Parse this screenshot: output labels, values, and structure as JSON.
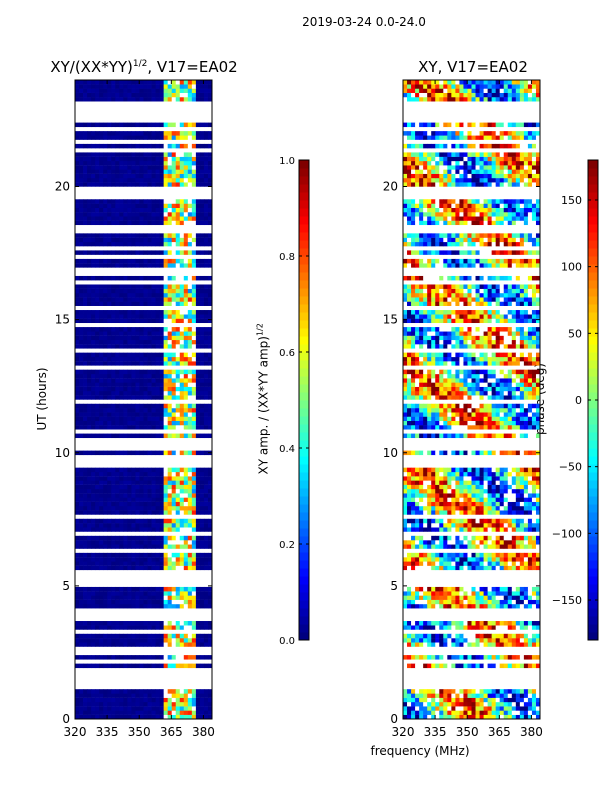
{
  "suptitle": "2019-03-24 0.0-24.0",
  "xlabel_common": "frequency (MHz)",
  "chart_data": [
    {
      "type": "heatmap",
      "title_main": "XY/(XX*YY)",
      "title_sup": "1/2",
      "title_tail": ", V17=EA02",
      "ylabel": "UT (hours)",
      "xlim": [
        320,
        384
      ],
      "ylim": [
        0,
        24
      ],
      "xticks": [
        320,
        335,
        350,
        365,
        380
      ],
      "yticks": [
        0,
        5,
        10,
        15,
        20
      ],
      "colorbar": {
        "label_main": "XY amp. / (XX*YY amp)",
        "label_sup": "1/2",
        "range": [
          0.0,
          1.0
        ],
        "ticks": [
          "0.0",
          "0.2",
          "0.4",
          "0.6",
          "0.8",
          "1.0"
        ],
        "colormap": "jet"
      },
      "rfi_band_mhz": [
        361,
        378
      ]
    },
    {
      "type": "heatmap",
      "title_main": "XY, V17=EA02",
      "ylabel": "",
      "xlim": [
        320,
        384
      ],
      "ylim": [
        0,
        24
      ],
      "xticks": [
        320,
        335,
        350,
        365,
        380
      ],
      "yticks": [
        0,
        5,
        10,
        15,
        20
      ],
      "colorbar": {
        "label_main": "phase (deg)",
        "range": [
          -180,
          180
        ],
        "ticks": [
          "−150",
          "−100",
          "−50",
          "0",
          "50",
          "100",
          "150"
        ],
        "tick_values": [
          -150,
          -100,
          -50,
          0,
          50,
          100,
          150
        ],
        "colormap": "jet"
      }
    }
  ]
}
